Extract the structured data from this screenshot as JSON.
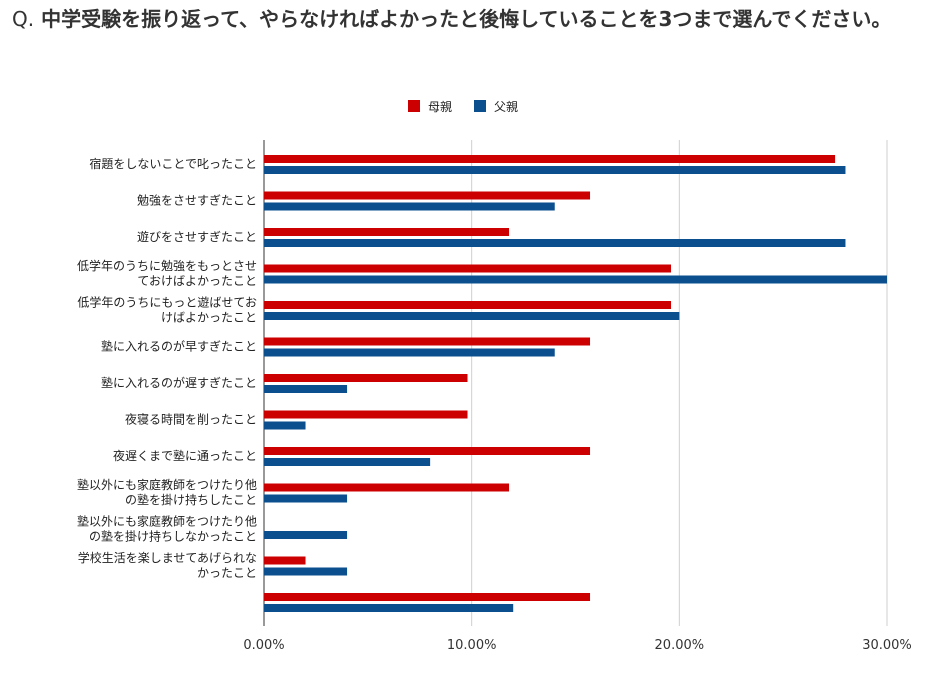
{
  "title": {
    "prefix": "Q.",
    "text": "中学受験を振り返って、やらなければよかったと後悔していることを3つまで選んでください。"
  },
  "chart_data": {
    "type": "bar",
    "orientation": "horizontal",
    "categories": [
      [
        "宿題をしないことで叱ったこと"
      ],
      [
        "勉強をさせすぎたこと"
      ],
      [
        "遊びをさせすぎたこと"
      ],
      [
        "低学年のうちに勉強をもっとさせ",
        "ておけばよかったこと"
      ],
      [
        "低学年のうちにもっと遊ばせてお",
        "けばよかったこと"
      ],
      [
        "塾に入れるのが早すぎたこと"
      ],
      [
        "塾に入れるのが遅すぎたこと"
      ],
      [
        "夜寝る時間を削ったこと"
      ],
      [
        "夜遅くまで塾に通ったこと"
      ],
      [
        "塾以外にも家庭教師をつけたり他",
        "の塾を掛け持ちしたこと"
      ],
      [
        "塾以外にも家庭教師をつけたり他",
        "の塾を掛け持ちしなかったこと"
      ],
      [
        "学校生活を楽しませてあげられな",
        "かったこと"
      ],
      [
        ""
      ]
    ],
    "series": [
      {
        "name": "母親",
        "color": "#cc0000",
        "values": [
          27.5,
          15.7,
          11.8,
          19.6,
          19.6,
          15.7,
          9.8,
          9.8,
          15.7,
          11.8,
          0,
          2.0,
          15.7
        ]
      },
      {
        "name": "父親",
        "color": "#0b4f8f",
        "values": [
          28.0,
          14.0,
          28.0,
          30.0,
          20.0,
          14.0,
          4.0,
          2.0,
          8.0,
          4.0,
          4.0,
          4.0,
          12.0
        ]
      }
    ],
    "xlim": [
      0,
      30
    ],
    "xticks": [
      "0.00%",
      "10.00%",
      "20.00%",
      "30.00%"
    ],
    "grid": true,
    "legend_position": "top"
  }
}
